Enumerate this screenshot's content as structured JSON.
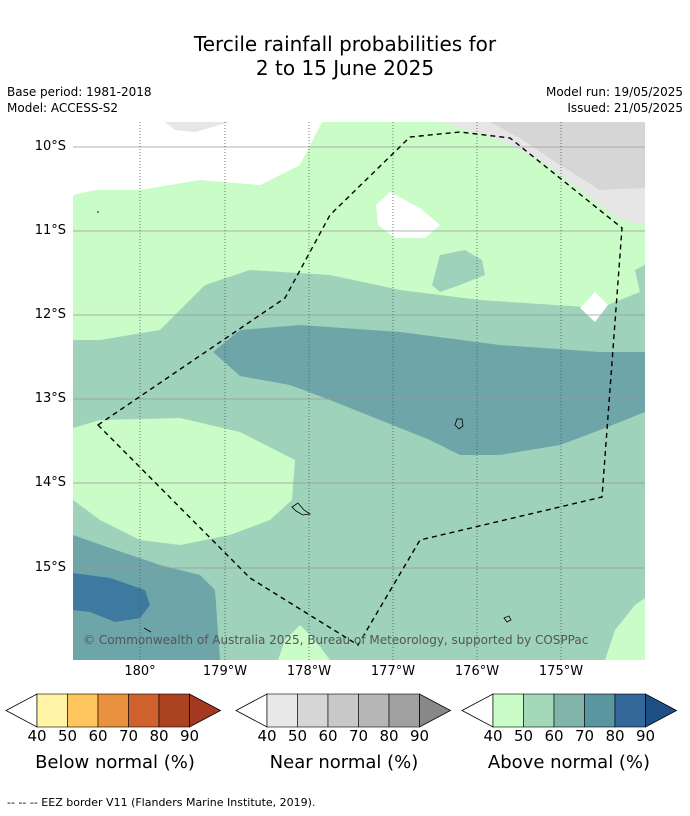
{
  "title": {
    "line1": "Tercile rainfall probabilities for",
    "line2": "2 to 15 June 2025"
  },
  "meta": {
    "base_period": "Base period: 1981-2018",
    "model": "Model: ACCESS-S2",
    "model_run": "Model run: 19/05/2025",
    "issued": "Issued: 21/05/2025"
  },
  "map": {
    "lat_labels": [
      "10°S",
      "11°S",
      "12°S",
      "13°S",
      "14°S",
      "15°S"
    ],
    "lon_labels": [
      "180°",
      "179°W",
      "178°W",
      "177°W",
      "176°W",
      "175°W"
    ],
    "copyright": "© Commonwealth of Australia 2025, Bureau of Meteorology, supported by COSPPac"
  },
  "colorbars": [
    {
      "title": "Below normal (%)",
      "ticks": [
        "40",
        "50",
        "60",
        "70",
        "80",
        "90"
      ],
      "colors": [
        "#fff3a6",
        "#fdc55c",
        "#e8913e",
        "#d0612e",
        "#ab4321",
        "#a33a20"
      ]
    },
    {
      "title": "Near normal (%)",
      "ticks": [
        "40",
        "50",
        "60",
        "70",
        "80",
        "90"
      ],
      "colors": [
        "#e8e8e8",
        "#d6d6d6",
        "#c8c8c8",
        "#b6b6b6",
        "#a0a0a0",
        "#888888"
      ]
    },
    {
      "title": "Above normal (%)",
      "ticks": [
        "40",
        "50",
        "60",
        "70",
        "80",
        "90"
      ],
      "colors": [
        "#c9fcc6",
        "#a3d8b8",
        "#80b4a8",
        "#5a96a0",
        "#34689a",
        "#1e4f86"
      ]
    }
  ],
  "footnote": "--  --  -- EEZ border V11 (Flanders Marine Institute, 2019)."
}
